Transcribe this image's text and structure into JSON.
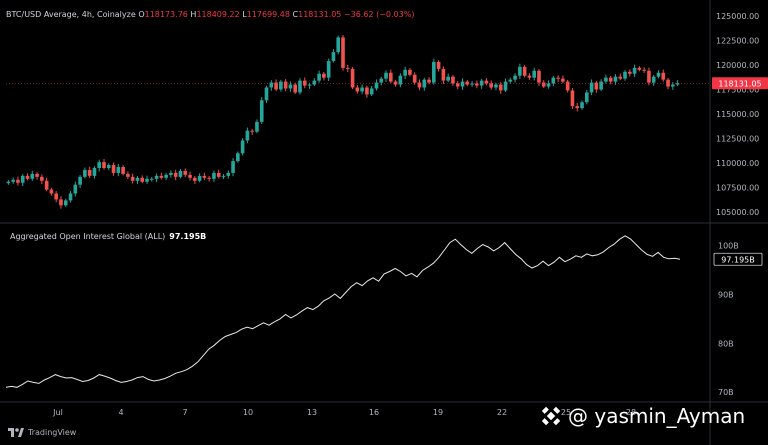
{
  "header": {
    "symbol": "BTC/USD Average, 4h, Coinalyze",
    "open_label": "O",
    "open": "118173.76",
    "high_label": "H",
    "high": "118409.22",
    "low_label": "L",
    "low": "117699.48",
    "close_label": "C",
    "close": "118131.05",
    "change": "−36.62 (−0.03%)"
  },
  "oi_panel": {
    "label": "Aggregated Open Interest Global (ALL)",
    "value": "97.195B"
  },
  "branding": {
    "tradingview": "TradingView",
    "watermark": "@ yasmin_Ayman"
  },
  "colors": {
    "up": "#26a69a",
    "down": "#ef5350",
    "line": "#e8e8e8",
    "badge": "#f23645",
    "bg": "#000000"
  },
  "chart_data": [
    {
      "type": "candlestick",
      "x_ticks": [
        "Jul",
        "4",
        "7",
        "10",
        "13",
        "16",
        "19",
        "22",
        "25",
        "28"
      ],
      "y_ticks": [
        "125000.00",
        "122500.00",
        "120000.00",
        "117500.00",
        "115000.00",
        "112500.00",
        "110000.00",
        "107500.00",
        "105000.00"
      ],
      "ylim": [
        104000,
        126000
      ],
      "last_price": "118131.05",
      "close": [
        108100,
        108300,
        108000,
        108700,
        108400,
        108900,
        108600,
        108200,
        107300,
        106900,
        106300,
        105700,
        106200,
        106900,
        107800,
        108600,
        109300,
        108700,
        109500,
        110100,
        109500,
        109800,
        109000,
        109600,
        108900,
        108600,
        108200,
        108500,
        108100,
        108400,
        108400,
        108700,
        108500,
        108800,
        109000,
        108600,
        109200,
        108800,
        108500,
        108200,
        108700,
        108500,
        108400,
        109000,
        108600,
        108700,
        109000,
        110200,
        111000,
        112300,
        113300,
        113200,
        114200,
        116400,
        117700,
        118200,
        117500,
        118300,
        117600,
        118000,
        117200,
        118400,
        117900,
        118000,
        118400,
        119100,
        118700,
        120400,
        121300,
        122800,
        119700,
        119600,
        117700,
        117300,
        117700,
        117000,
        117600,
        118200,
        118600,
        119200,
        118300,
        118000,
        118900,
        119500,
        119000,
        118200,
        117700,
        118500,
        118200,
        120300,
        119600,
        118400,
        118800,
        118100,
        117800,
        118300,
        118000,
        118100,
        117900,
        118400,
        118100,
        117700,
        118000,
        117400,
        118300,
        118500,
        118900,
        119800,
        118900,
        118700,
        119400,
        118200,
        117800,
        118100,
        118700,
        118600,
        118300,
        117400,
        115800,
        115600,
        116200,
        117200,
        118200,
        117500,
        118300,
        118700,
        118300,
        118800,
        118600,
        119300,
        119100,
        119700,
        119500,
        119400,
        118200,
        118800,
        119200,
        118500,
        117800,
        118000,
        118131.05
      ]
    },
    {
      "type": "line",
      "series": [
        {
          "name": "Aggregated Open Interest Global (ALL)"
        }
      ],
      "y_ticks": [
        "100B",
        "90B",
        "80B",
        "70B"
      ],
      "ylim": [
        68,
        104
      ],
      "last_value": "97.195B",
      "values": [
        71.0,
        71.2,
        71.0,
        71.6,
        72.3,
        72.0,
        71.8,
        72.5,
        73.0,
        73.6,
        73.2,
        72.9,
        73.0,
        72.6,
        72.2,
        72.4,
        72.9,
        73.6,
        73.3,
        72.9,
        72.4,
        72.0,
        72.2,
        72.5,
        73.0,
        73.2,
        72.6,
        72.3,
        72.5,
        72.8,
        73.3,
        73.9,
        74.2,
        74.6,
        75.3,
        76.2,
        77.5,
        78.8,
        79.6,
        80.6,
        81.4,
        81.8,
        82.2,
        82.9,
        83.3,
        83.0,
        83.6,
        84.2,
        83.7,
        84.4,
        85.0,
        85.9,
        85.2,
        85.8,
        86.6,
        87.3,
        86.9,
        87.6,
        88.7,
        89.3,
        90.1,
        89.2,
        90.4,
        91.6,
        92.4,
        91.8,
        92.8,
        93.4,
        92.7,
        94.2,
        94.7,
        95.3,
        94.7,
        93.8,
        94.3,
        93.6,
        94.9,
        95.6,
        96.4,
        97.6,
        99.1,
        100.6,
        101.3,
        100.2,
        99.2,
        98.4,
        99.4,
        100.2,
        99.7,
        98.9,
        99.6,
        100.6,
        99.4,
        98.2,
        97.3,
        96.1,
        95.4,
        95.9,
        96.8,
        95.9,
        96.6,
        97.6,
        96.7,
        97.2,
        97.9,
        97.6,
        98.3,
        97.9,
        98.1,
        98.7,
        99.6,
        100.3,
        101.3,
        102.0,
        101.3,
        100.2,
        99.1,
        98.2,
        97.8,
        98.6,
        97.6,
        97.3,
        97.4,
        97.195
      ]
    }
  ]
}
